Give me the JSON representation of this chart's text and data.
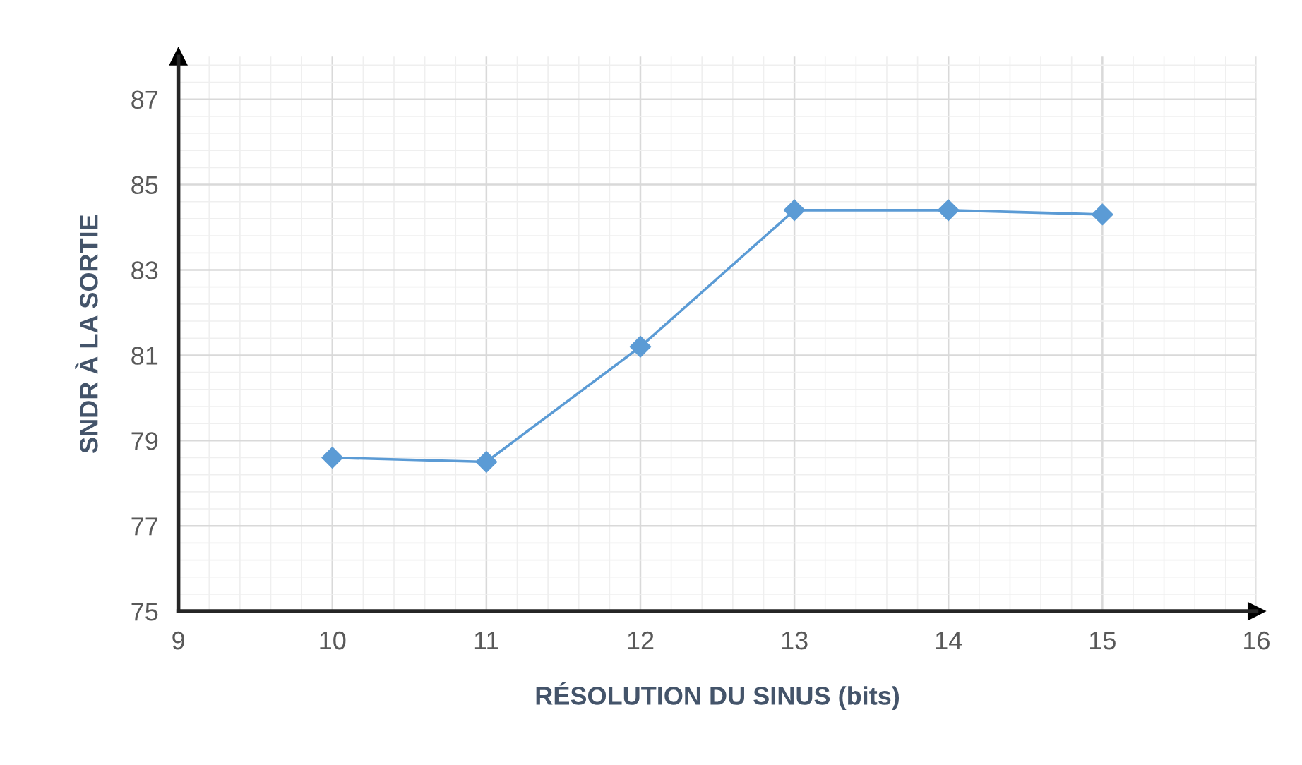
{
  "chart_data": {
    "type": "line",
    "xlabel": "RÉSOLUTION DU SINUS (bits)",
    "ylabel": "SNDR À LA SORTIE",
    "x": [
      10,
      11,
      12,
      13,
      14,
      15
    ],
    "series": [
      {
        "color": "#5b9bd5",
        "values": [
          78.6,
          78.5,
          81.2,
          84.4,
          84.4,
          84.3
        ]
      }
    ],
    "xlim": [
      9,
      16
    ],
    "xticks": [
      9,
      10,
      11,
      12,
      13,
      14,
      15,
      16
    ],
    "ylim": [
      75,
      88
    ],
    "yticks": [
      75,
      77,
      79,
      81,
      83,
      85,
      87
    ],
    "grid": true,
    "marker": "diamond",
    "line_style": "solid",
    "legend": false
  }
}
